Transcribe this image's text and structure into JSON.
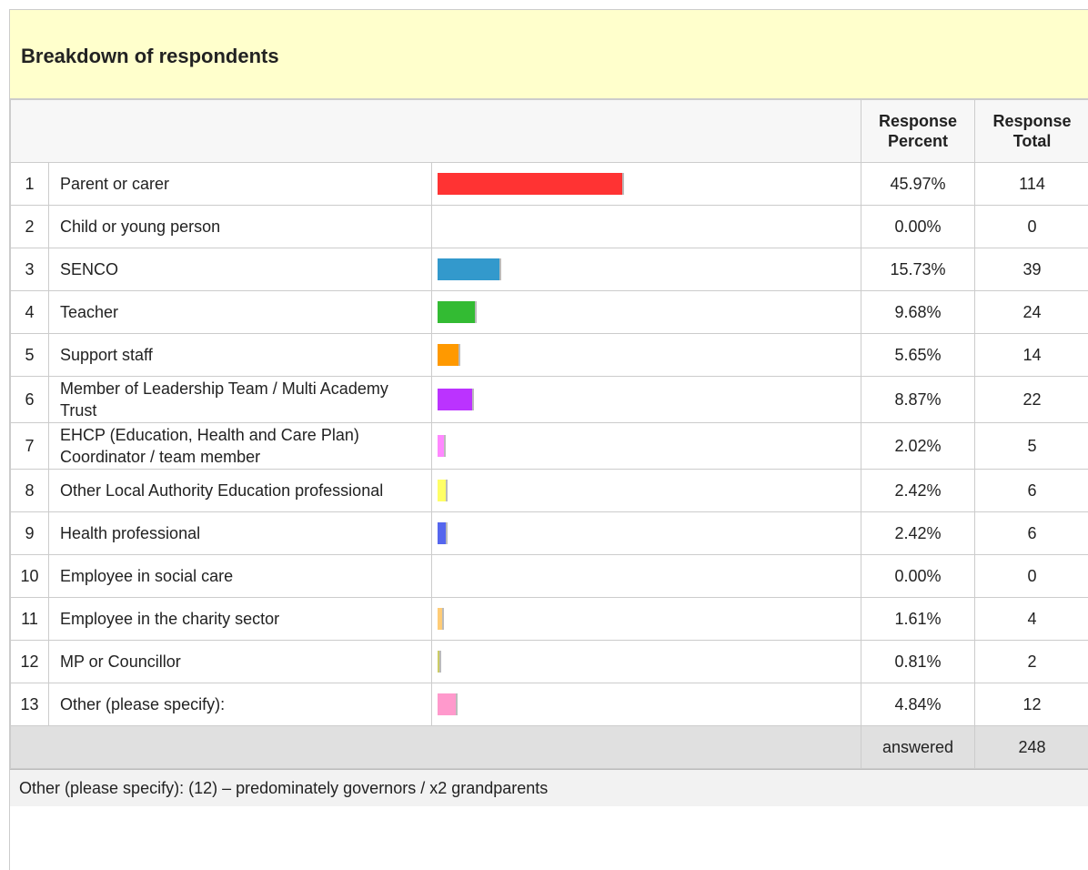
{
  "title": "Breakdown of respondents",
  "columns": {
    "percent": "Response Percent",
    "total": "Response Total"
  },
  "rows": [
    {
      "index": 1,
      "label": "Parent or carer",
      "percent": 45.97,
      "percent_label": "45.97%",
      "total": 114,
      "color": "#ff3333"
    },
    {
      "index": 2,
      "label": "Child or young person",
      "percent": 0,
      "percent_label": "0.00%",
      "total": 0,
      "color": "#cccccc"
    },
    {
      "index": 3,
      "label": "SENCO",
      "percent": 15.73,
      "percent_label": "15.73%",
      "total": 39,
      "color": "#3399cc"
    },
    {
      "index": 4,
      "label": "Teacher",
      "percent": 9.68,
      "percent_label": "9.68%",
      "total": 24,
      "color": "#33bb33"
    },
    {
      "index": 5,
      "label": "Support staff",
      "percent": 5.65,
      "percent_label": "5.65%",
      "total": 14,
      "color": "#ff9900"
    },
    {
      "index": 6,
      "label": "Member of Leadership Team / Multi Academy Trust",
      "percent": 8.87,
      "percent_label": "8.87%",
      "total": 22,
      "color": "#bb33ff"
    },
    {
      "index": 7,
      "label": "EHCP (Education, Health and Care Plan) Coordinator / team member",
      "percent": 2.02,
      "percent_label": "2.02%",
      "total": 5,
      "color": "#ff88ff"
    },
    {
      "index": 8,
      "label": "Other Local Authority Education professional",
      "percent": 2.42,
      "percent_label": "2.42%",
      "total": 6,
      "color": "#ffff66"
    },
    {
      "index": 9,
      "label": "Health professional",
      "percent": 2.42,
      "percent_label": "2.42%",
      "total": 6,
      "color": "#5566ee"
    },
    {
      "index": 10,
      "label": "Employee in social care",
      "percent": 0,
      "percent_label": "0.00%",
      "total": 0,
      "color": "#cccccc"
    },
    {
      "index": 11,
      "label": "Employee in the charity sector",
      "percent": 1.61,
      "percent_label": "1.61%",
      "total": 4,
      "color": "#ffcc77"
    },
    {
      "index": 12,
      "label": "MP or Councillor",
      "percent": 0.81,
      "percent_label": "0.81%",
      "total": 2,
      "color": "#cccc66"
    },
    {
      "index": 13,
      "label": "Other (please specify):",
      "percent": 4.84,
      "percent_label": "4.84%",
      "total": 12,
      "color": "#ff99cc"
    }
  ],
  "answered": {
    "label": "answered",
    "total": 248
  },
  "note": "Other (please specify): (12) – predominately governors / x2 grandparents"
}
